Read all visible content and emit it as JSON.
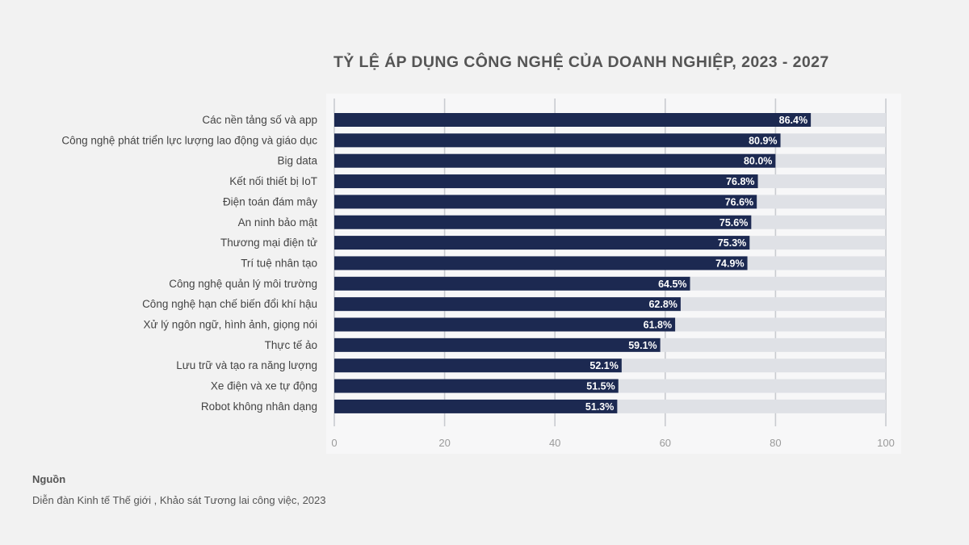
{
  "chart_data": {
    "type": "bar",
    "orientation": "horizontal",
    "title": "TỶ LỆ ÁP DỤNG CÔNG NGHỆ CỦA DOANH NGHIỆP, 2023 - 2027",
    "xlabel": "",
    "ylabel": "",
    "xlim": [
      0,
      100
    ],
    "x_ticks": [
      0,
      20,
      40,
      60,
      80,
      100
    ],
    "grid": true,
    "value_suffix": "%",
    "categories": [
      "Các nền tảng số và app",
      "Công nghệ phát triển lực lượng lao động và giáo dục",
      "Big data",
      "Kết nối thiết bị IoT",
      "Điện toán đám mây",
      "An ninh bảo mật",
      "Thương mại điện tử",
      "Trí tuệ nhân tạo",
      "Công nghệ quản lý môi trường",
      "Công nghệ hạn chế biến đổi khí hậu",
      "Xử lý ngôn ngữ, hình ảnh, giọng nói",
      "Thực tế ảo",
      "Lưu trữ và tạo ra năng  lượng",
      "Xe điện và xe tự động",
      "Robot không nhân dạng"
    ],
    "values": [
      86.4,
      80.9,
      80.0,
      76.8,
      76.6,
      75.6,
      75.3,
      74.9,
      64.5,
      62.8,
      61.8,
      59.1,
      52.1,
      51.5,
      51.3
    ],
    "colors": {
      "bar": "#1c2951",
      "track": "#dfe1e6",
      "grid": "#c9cbd0",
      "label": "#444444",
      "tick": "#9a9a9a",
      "value_text": "#ffffff"
    }
  },
  "source": {
    "label": "Nguồn",
    "text": "Diễn đàn Kinh tế Thế giới , Khảo sát Tương lai công việc, 2023"
  }
}
